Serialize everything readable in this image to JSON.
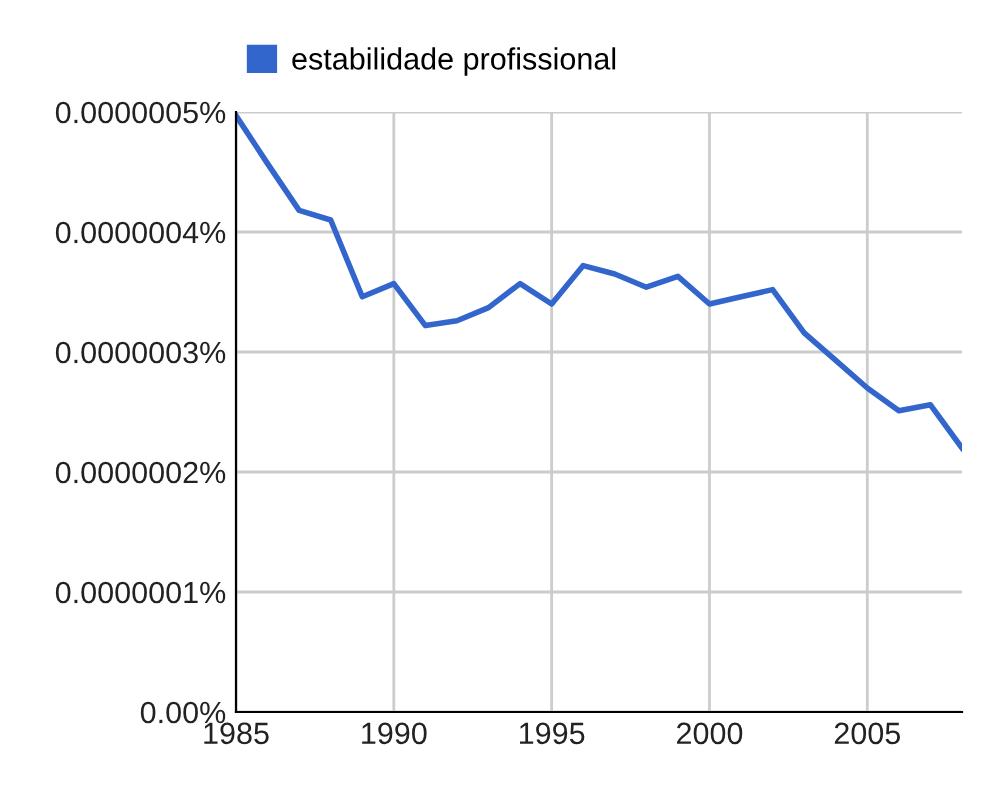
{
  "chart_data": {
    "type": "line",
    "x": [
      1985,
      1986,
      1987,
      1988,
      1989,
      1990,
      1991,
      1992,
      1993,
      1994,
      1995,
      1996,
      1997,
      1998,
      1999,
      2000,
      2001,
      2002,
      2003,
      2004,
      2005,
      2006,
      2007,
      2008
    ],
    "series": [
      {
        "name": "estabilidade profissional",
        "color": "#3366cc",
        "values": [
          4.97e-07,
          4.57e-07,
          4.18e-07,
          4.1e-07,
          3.46e-07,
          3.57e-07,
          3.22e-07,
          3.26e-07,
          3.37e-07,
          3.57e-07,
          3.4e-07,
          3.72e-07,
          3.65e-07,
          3.54e-07,
          3.63e-07,
          3.4e-07,
          3.46e-07,
          3.52e-07,
          3.16e-07,
          2.93e-07,
          2.7e-07,
          2.51e-07,
          2.56e-07,
          2.2e-07
        ]
      }
    ],
    "xlim": [
      1985,
      2008
    ],
    "xticks": [
      1985,
      1990,
      1995,
      2000,
      2005
    ],
    "ylim": [
      0,
      5e-07
    ],
    "yticks": [
      {
        "value": 0,
        "label": "0.00%"
      },
      {
        "value": 1e-07,
        "label": "0.0000001%"
      },
      {
        "value": 2e-07,
        "label": "0.0000002%"
      },
      {
        "value": 3e-07,
        "label": "0.0000003%"
      },
      {
        "value": 4e-07,
        "label": "0.0000004%"
      },
      {
        "value": 5e-07,
        "label": "0.0000005%"
      }
    ],
    "grid": true,
    "legend": "top",
    "marker": "none",
    "line_style": "solid"
  }
}
